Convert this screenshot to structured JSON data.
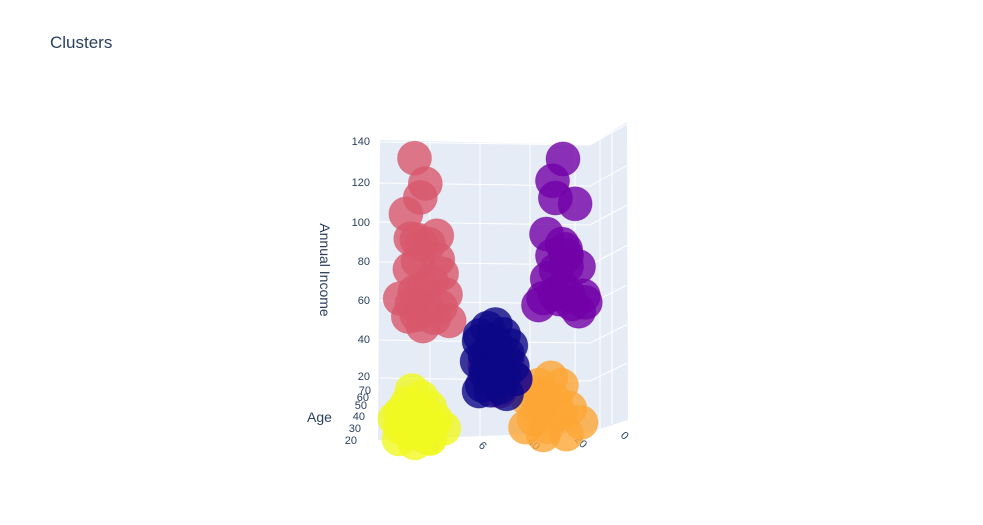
{
  "chart_data": {
    "type": "scatter3d",
    "title": "Clusters",
    "axes": {
      "x": {
        "label": "",
        "ticks": [
          "0",
          "20",
          "40",
          "6",
          "8"
        ]
      },
      "y": {
        "label": "Annual Income",
        "range": [
          15,
          145
        ],
        "ticks": [
          "20",
          "40",
          "60",
          "80",
          "100",
          "120",
          "140"
        ]
      },
      "z": {
        "label": "Age",
        "ticks": [
          "20",
          "30",
          "40",
          "50",
          "60",
          "70"
        ]
      }
    },
    "grid": true,
    "series": [
      {
        "color": "#d8576b",
        "points": [
          [
            85,
            137,
            30
          ],
          [
            80,
            126,
            32
          ],
          [
            82,
            120,
            33
          ],
          [
            88,
            113,
            35
          ],
          [
            75,
            103,
            32
          ],
          [
            84,
            101,
            30
          ],
          [
            79,
            99,
            29
          ],
          [
            74,
            93,
            36
          ],
          [
            72,
            87,
            38
          ],
          [
            83,
            92,
            33
          ],
          [
            87,
            88,
            30
          ],
          [
            77,
            83,
            34
          ],
          [
            81,
            80,
            32
          ],
          [
            70,
            78,
            40
          ],
          [
            85,
            78,
            29
          ],
          [
            90,
            76,
            38
          ],
          [
            73,
            72,
            35
          ],
          [
            78,
            71,
            37
          ],
          [
            86,
            73,
            31
          ],
          [
            76,
            67,
            33
          ],
          [
            69,
            66,
            36
          ],
          [
            84,
            68,
            30
          ],
          [
            80,
            64,
            39
          ],
          [
            88,
            67,
            28
          ],
          [
            82,
            99,
            31
          ],
          [
            86,
            102,
            34
          ]
        ]
      },
      {
        "color": "#7201a8",
        "points": [
          [
            20,
            137,
            33
          ],
          [
            25,
            127,
            30
          ],
          [
            23,
            120,
            35
          ],
          [
            15,
            117,
            31
          ],
          [
            27,
            104,
            34
          ],
          [
            21,
            99,
            29
          ],
          [
            19,
            97,
            32
          ],
          [
            25,
            94,
            30
          ],
          [
            18,
            90,
            36
          ],
          [
            23,
            88,
            33
          ],
          [
            14,
            89,
            28
          ],
          [
            27,
            84,
            32
          ],
          [
            20,
            80,
            34
          ],
          [
            17,
            78,
            38
          ],
          [
            24,
            77,
            30
          ],
          [
            12,
            76,
            27
          ],
          [
            10,
            74,
            35
          ],
          [
            16,
            73,
            33
          ],
          [
            22,
            75,
            31
          ],
          [
            28,
            76,
            36
          ],
          [
            13,
            70,
            34
          ],
          [
            30,
            73,
            37
          ],
          [
            19,
            94,
            29
          ]
        ]
      },
      {
        "color": "#0d0887",
        "points": [
          [
            48,
            65,
            42
          ],
          [
            52,
            63,
            38
          ],
          [
            44,
            61,
            45
          ],
          [
            55,
            60,
            40
          ],
          [
            47,
            58,
            50
          ],
          [
            41,
            56,
            44
          ],
          [
            56,
            57,
            36
          ],
          [
            50,
            54,
            47
          ],
          [
            43,
            52,
            41
          ],
          [
            53,
            51,
            39
          ],
          [
            46,
            49,
            52
          ],
          [
            51,
            47,
            43
          ],
          [
            40,
            47,
            46
          ],
          [
            57,
            48,
            35
          ],
          [
            48,
            45,
            55
          ],
          [
            43,
            43,
            49
          ],
          [
            53,
            43,
            37
          ],
          [
            47,
            41,
            45
          ],
          [
            38,
            42,
            51
          ],
          [
            54,
            38,
            40
          ],
          [
            45,
            38,
            48
          ],
          [
            50,
            36,
            42
          ],
          [
            41,
            36,
            56
          ],
          [
            56,
            35,
            36
          ]
        ]
      },
      {
        "color": "#bd3786",
        "points": [
          [
            54,
            46,
            33
          ],
          [
            49,
            42,
            30
          ],
          [
            44,
            48,
            34
          ],
          [
            52,
            38,
            31
          ],
          [
            47,
            35,
            36
          ],
          [
            41,
            40,
            32
          ]
        ]
      },
      {
        "color": "#fca636",
        "points": [
          [
            26,
            40,
            28
          ],
          [
            31,
            37,
            30
          ],
          [
            21,
            37,
            31
          ],
          [
            34,
            33,
            26
          ],
          [
            28,
            32,
            32
          ],
          [
            24,
            30,
            29
          ],
          [
            36,
            30,
            27
          ],
          [
            17,
            27,
            33
          ],
          [
            30,
            26,
            31
          ],
          [
            22,
            24,
            28
          ],
          [
            33,
            22,
            30
          ],
          [
            12,
            21,
            34
          ],
          [
            27,
            19,
            33
          ],
          [
            36,
            19,
            35
          ],
          [
            18,
            16,
            36
          ],
          [
            29,
            15,
            30
          ]
        ]
      },
      {
        "color": "#f0f921",
        "points": [
          [
            80,
            39,
            70
          ],
          [
            77,
            35,
            62
          ],
          [
            84,
            32,
            58
          ],
          [
            73,
            31,
            65
          ],
          [
            79,
            28,
            54
          ],
          [
            88,
            27,
            51
          ],
          [
            70,
            26,
            68
          ],
          [
            83,
            25,
            60
          ],
          [
            76,
            24,
            56
          ],
          [
            91,
            24,
            47
          ],
          [
            86,
            22,
            64
          ],
          [
            74,
            21,
            50
          ],
          [
            81,
            20,
            67
          ],
          [
            68,
            21,
            58
          ],
          [
            78,
            19,
            61
          ],
          [
            85,
            18,
            44
          ],
          [
            72,
            18,
            71
          ],
          [
            88,
            16,
            55
          ],
          [
            75,
            16,
            53
          ],
          [
            80,
            15,
            62
          ]
        ]
      }
    ]
  }
}
